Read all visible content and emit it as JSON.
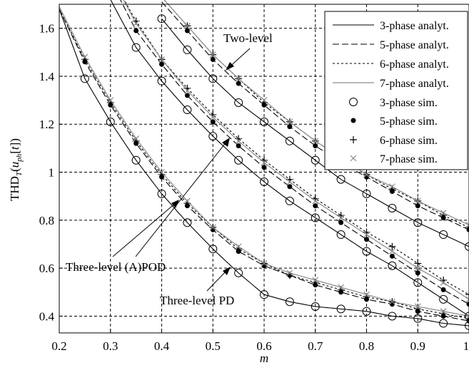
{
  "chart_data": {
    "type": "line",
    "xlabel": "m",
    "ylabel": "THD_T(u_ph[t])",
    "xlim": [
      0.2,
      1.0
    ],
    "ylim": [
      0.33,
      1.7
    ],
    "grid": true,
    "legend_position": "top-right",
    "xticks": [
      "0.2",
      "0.3",
      "0.4",
      "0.5",
      "0.6",
      "0.7",
      "0.8",
      "0.9",
      "1"
    ],
    "yticks": [
      "0.4",
      "0.6",
      "0.8",
      "1",
      "1.2",
      "1.4",
      "1.6"
    ],
    "legend": [
      {
        "label": "3-phase analyt.",
        "style": "solid"
      },
      {
        "label": "5-phase analyt.",
        "style": "long-dash"
      },
      {
        "label": "6-phase analyt.",
        "style": "short-dash"
      },
      {
        "label": "7-phase analyt.",
        "style": "solid-gray"
      },
      {
        "label": "3-phase sim.",
        "marker": "open-circle"
      },
      {
        "label": "5-phase sim.",
        "marker": "filled-dot"
      },
      {
        "label": "6-phase sim.",
        "marker": "plus"
      },
      {
        "label": "7-phase sim.",
        "marker": "cross"
      }
    ],
    "annotations": [
      {
        "text": "Two-level",
        "group": "two_level"
      },
      {
        "text": "Three-level (A)POD",
        "group": "apod"
      },
      {
        "text": "Three-level PD",
        "group": "pd"
      }
    ],
    "groups": {
      "two_level": {
        "x": [
          0.4,
          0.45,
          0.5,
          0.55,
          0.6,
          0.65,
          0.7,
          0.75,
          0.8,
          0.85,
          0.9,
          0.95,
          1.0
        ],
        "sim_x": [
          0.35,
          0.4,
          0.45,
          0.5,
          0.55,
          0.6,
          0.65,
          0.7,
          0.75,
          0.8,
          0.85,
          0.9,
          0.95,
          1.0
        ],
        "series": [
          {
            "name": "3-phase",
            "values": [
              1.64,
              1.51,
              1.39,
              1.29,
              1.21,
              1.13,
              1.05,
              0.97,
              0.91,
              0.85,
              0.79,
              0.74,
              0.69
            ]
          },
          {
            "name": "5-phase",
            "values": [
              1.71,
              1.59,
              1.47,
              1.37,
              1.28,
              1.19,
              1.11,
              1.04,
              0.98,
              0.92,
              0.86,
              0.81,
              0.76
            ]
          },
          {
            "name": "6-phase",
            "values": [
              1.73,
              1.61,
              1.49,
              1.39,
              1.29,
              1.21,
              1.13,
              1.06,
              0.99,
              0.93,
              0.88,
              0.82,
              0.77
            ]
          },
          {
            "name": "7-phase",
            "values": [
              1.73,
              1.61,
              1.49,
              1.39,
              1.3,
              1.21,
              1.13,
              1.06,
              0.99,
              0.94,
              0.88,
              0.83,
              0.78
            ]
          }
        ]
      },
      "apod": {
        "x": [
          0.3,
          0.35,
          0.4,
          0.45,
          0.5,
          0.55,
          0.6,
          0.65,
          0.7,
          0.75,
          0.8,
          0.85,
          0.9,
          0.95,
          1.0
        ],
        "sim_x": [
          0.3,
          0.35,
          0.4,
          0.45,
          0.5,
          0.55,
          0.6,
          0.65,
          0.7,
          0.75,
          0.8,
          0.85,
          0.9,
          0.95,
          1.0
        ],
        "series": [
          {
            "name": "3-phase",
            "values": [
              1.72,
              1.52,
              1.38,
              1.26,
              1.15,
              1.05,
              0.96,
              0.88,
              0.81,
              0.74,
              0.67,
              0.61,
              0.54,
              0.47,
              0.4
            ]
          },
          {
            "name": "5-phase",
            "values": [
              1.8,
              1.59,
              1.45,
              1.32,
              1.21,
              1.11,
              1.02,
              0.94,
              0.86,
              0.79,
              0.72,
              0.65,
              0.58,
              0.51,
              0.45
            ]
          },
          {
            "name": "6-phase",
            "values": [
              1.82,
              1.63,
              1.47,
              1.35,
              1.24,
              1.14,
              1.05,
              0.97,
              0.89,
              0.82,
              0.75,
              0.69,
              0.62,
              0.55,
              0.49
            ]
          },
          {
            "name": "7-phase",
            "values": [
              1.82,
              1.62,
              1.47,
              1.34,
              1.23,
              1.13,
              1.04,
              0.96,
              0.88,
              0.81,
              0.74,
              0.67,
              0.6,
              0.54,
              0.47
            ]
          }
        ]
      },
      "pd": {
        "x": [
          0.2,
          0.25,
          0.3,
          0.35,
          0.4,
          0.45,
          0.5,
          0.55,
          0.6,
          0.65,
          0.7,
          0.75,
          0.8,
          0.85,
          0.9,
          0.95,
          1.0
        ],
        "sim_x": [
          0.25,
          0.3,
          0.35,
          0.4,
          0.45,
          0.5,
          0.55,
          0.6,
          0.65,
          0.7,
          0.75,
          0.8,
          0.85,
          0.9,
          0.95,
          1.0
        ],
        "series": [
          {
            "name": "3-phase",
            "values": [
              1.68,
              1.39,
              1.21,
              1.05,
              0.91,
              0.79,
              0.68,
              0.58,
              0.49,
              0.46,
              0.44,
              0.43,
              0.42,
              0.4,
              0.39,
              0.37,
              0.36
            ]
          },
          {
            "name": "5-phase",
            "values": [
              1.68,
              1.46,
              1.28,
              1.12,
              0.98,
              0.86,
              0.76,
              0.67,
              0.61,
              0.57,
              0.53,
              0.5,
              0.47,
              0.45,
              0.42,
              0.4,
              0.38
            ]
          },
          {
            "name": "6-phase",
            "values": [
              1.68,
              1.47,
              1.29,
              1.13,
              0.99,
              0.87,
              0.77,
              0.68,
              0.62,
              0.57,
              0.54,
              0.51,
              0.48,
              0.46,
              0.43,
              0.41,
              0.39
            ]
          },
          {
            "name": "7-phase",
            "values": [
              1.69,
              1.48,
              1.3,
              1.14,
              1.0,
              0.88,
              0.77,
              0.69,
              0.62,
              0.58,
              0.55,
              0.52,
              0.49,
              0.46,
              0.44,
              0.42,
              0.4
            ]
          }
        ]
      }
    }
  }
}
